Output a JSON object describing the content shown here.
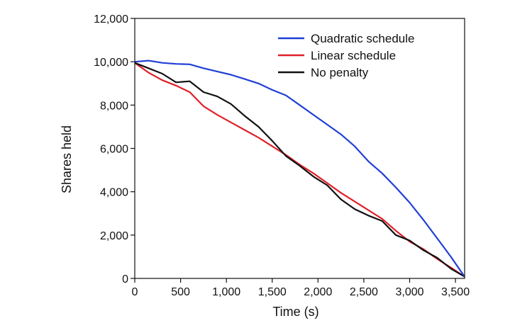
{
  "chart_data": {
    "type": "line",
    "title": "",
    "xlabel": "Time (s)",
    "ylabel": "Shares held",
    "xlim": [
      0,
      3600
    ],
    "ylim": [
      0,
      12000
    ],
    "x_ticks": [
      0,
      500,
      1000,
      1500,
      2000,
      2500,
      3000,
      3500
    ],
    "x_tick_labels": [
      "0",
      "500",
      "1,000",
      "1,500",
      "2,000",
      "2,500",
      "3,000",
      "3,500"
    ],
    "y_ticks": [
      0,
      2000,
      4000,
      6000,
      8000,
      10000,
      12000
    ],
    "y_tick_labels": [
      "0",
      "2,000",
      "4,000",
      "6,000",
      "8,000",
      "10,000",
      "12,000"
    ],
    "grid": false,
    "legend_position": "top-right",
    "series": [
      {
        "name": "Quadratic schedule",
        "color": "#1f3fd6",
        "x": [
          0,
          150,
          300,
          450,
          600,
          750,
          900,
          1050,
          1200,
          1350,
          1500,
          1650,
          1800,
          1950,
          2100,
          2250,
          2400,
          2550,
          2700,
          2850,
          3000,
          3150,
          3300,
          3450,
          3600
        ],
        "y": [
          10000,
          10050,
          9950,
          9900,
          9880,
          9700,
          9550,
          9400,
          9200,
          9000,
          8700,
          8450,
          8000,
          7550,
          7100,
          6650,
          6100,
          5400,
          4850,
          4200,
          3500,
          2700,
          1850,
          1000,
          80
        ]
      },
      {
        "name": "Linear schedule",
        "color": "#e0202a",
        "x": [
          0,
          150,
          300,
          450,
          600,
          750,
          900,
          1050,
          1200,
          1350,
          1500,
          1650,
          1800,
          1950,
          2100,
          2250,
          2400,
          2550,
          2700,
          2850,
          3000,
          3150,
          3300,
          3450,
          3600
        ],
        "y": [
          9950,
          9500,
          9150,
          8900,
          8600,
          7950,
          7550,
          7200,
          6850,
          6500,
          6100,
          5700,
          5250,
          4850,
          4400,
          3950,
          3550,
          3150,
          2750,
          2200,
          1700,
          1350,
          900,
          500,
          80
        ]
      },
      {
        "name": "No penalty",
        "color": "#111111",
        "x": [
          0,
          150,
          300,
          450,
          600,
          750,
          900,
          1050,
          1200,
          1350,
          1500,
          1650,
          1800,
          1950,
          2100,
          2250,
          2400,
          2550,
          2700,
          2850,
          3000,
          3150,
          3300,
          3450,
          3600
        ],
        "y": [
          9950,
          9700,
          9450,
          9050,
          9100,
          8600,
          8400,
          8050,
          7500,
          7000,
          6350,
          5650,
          5200,
          4700,
          4300,
          3650,
          3200,
          2900,
          2650,
          2000,
          1750,
          1300,
          950,
          450,
          80
        ]
      }
    ]
  }
}
